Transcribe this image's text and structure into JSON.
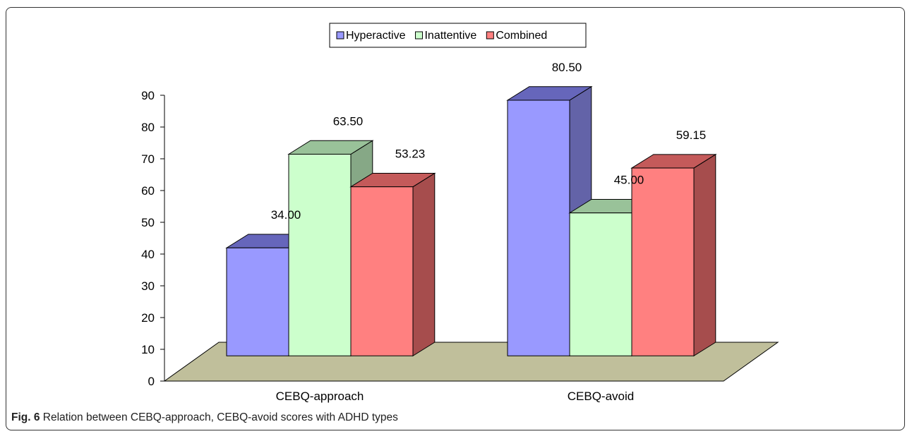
{
  "chart_data": {
    "type": "bar",
    "categories": [
      "CEBQ-approach",
      "CEBQ-avoid"
    ],
    "series": [
      {
        "name": "Hyperactive",
        "values": [
          34.0,
          80.5
        ],
        "value_labels": [
          "34.00",
          "80.50"
        ]
      },
      {
        "name": "Inattentive",
        "values": [
          63.5,
          45.0
        ],
        "value_labels": [
          "63.50",
          "45.00"
        ]
      },
      {
        "name": "Combined",
        "values": [
          53.23,
          59.15
        ],
        "value_labels": [
          "53.23",
          "59.15"
        ]
      }
    ],
    "ylim": [
      0,
      90
    ],
    "yticks": [
      "0",
      "10",
      "20",
      "30",
      "40",
      "50",
      "60",
      "70",
      "80",
      "90"
    ],
    "legend_position": "top-center",
    "three_d": true,
    "colors": {
      "Hyperactive": {
        "front": "#9999ff",
        "top": "#6666bb",
        "side": "#6363a8"
      },
      "Inattentive": {
        "front": "#ccffcc",
        "top": "#99c299",
        "side": "#86a886"
      },
      "Combined": {
        "front": "#ff8080",
        "top": "#c45a5a",
        "side": "#a64d4d"
      },
      "floor": "#c0bf9b"
    }
  },
  "caption": {
    "label": "Fig. 6",
    "text": " Relation between CEBQ-approach, CEBQ-avoid scores with ADHD types"
  }
}
